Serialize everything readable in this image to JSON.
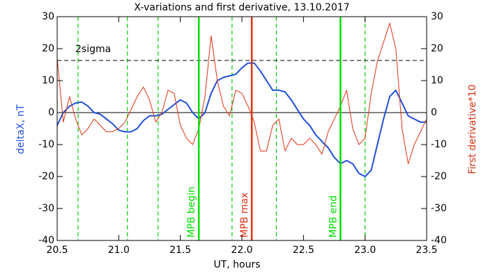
{
  "chart_data": {
    "type": "line",
    "title": "X-variations and first derivative, 13.10.2017",
    "x_label": "UT, hours",
    "y_label": "deltaX, nT",
    "y2_label": "First derivative*10",
    "x": [
      20.5,
      20.55,
      20.6,
      20.65,
      20.7,
      20.75,
      20.8,
      20.85,
      20.9,
      20.95,
      21.0,
      21.05,
      21.1,
      21.15,
      21.2,
      21.25,
      21.3,
      21.35,
      21.4,
      21.45,
      21.5,
      21.55,
      21.6,
      21.65,
      21.7,
      21.75,
      21.8,
      21.85,
      21.9,
      21.95,
      22.0,
      22.05,
      22.1,
      22.15,
      22.2,
      22.25,
      22.3,
      22.35,
      22.4,
      22.45,
      22.5,
      22.55,
      22.6,
      22.65,
      22.7,
      22.75,
      22.8,
      22.85,
      22.9,
      22.95,
      23.0,
      23.05,
      23.1,
      23.15,
      23.2,
      23.25,
      23.3,
      23.35,
      23.4,
      23.45,
      23.5
    ],
    "series": [
      {
        "name": "deltaX, nT",
        "color": "#1f4fd8",
        "axis": "y",
        "values": [
          -4,
          0,
          2,
          3,
          3.3,
          2,
          0,
          -0.5,
          -2,
          -3.5,
          -5.5,
          -6,
          -6,
          -5,
          -2.5,
          -1,
          -1,
          -0.5,
          1,
          2.5,
          4,
          3,
          0,
          -2,
          0,
          6,
          10,
          11,
          11.5,
          12,
          14,
          15.5,
          15.5,
          13,
          10,
          7,
          7,
          6.5,
          4,
          1,
          -2,
          -4,
          -7,
          -9,
          -11,
          -14,
          -16,
          -15,
          -16,
          -19,
          -20,
          -18,
          -10,
          -2,
          5,
          7,
          3,
          -1,
          -2,
          -3,
          -3
        ]
      },
      {
        "name": "First derivative*10",
        "color": "#e03010",
        "axis": "y2",
        "values": [
          17,
          -3,
          5,
          -2,
          -7,
          -5,
          -2,
          -4,
          -6,
          -6,
          -5,
          -3,
          1,
          5,
          8,
          4,
          -3,
          0,
          7,
          6,
          -4,
          -8,
          -10,
          -5,
          5,
          24,
          10,
          2,
          -1,
          7,
          6,
          2,
          -3,
          -12,
          -12,
          -4,
          -2,
          -12,
          -8,
          -10,
          -10,
          -8,
          -10,
          -13,
          -6,
          -2,
          2,
          7,
          -5,
          -10,
          -8,
          6,
          16,
          22,
          28,
          20,
          -5,
          -16,
          -10,
          -6,
          -2
        ]
      }
    ],
    "xlim": [
      20.5,
      23.5
    ],
    "xticks": [
      20.5,
      {
        "value": 21,
        "label": "21.0"
      },
      21.5,
      {
        "value": 22,
        "label": "22.0"
      },
      22.5,
      {
        "value": 23,
        "label": "23.0"
      },
      23.5
    ],
    "ylim": [
      -40,
      30
    ],
    "yticks": [
      -40,
      -30,
      -20,
      -10,
      0,
      10,
      20,
      30
    ],
    "y2lim": [
      -40,
      30
    ],
    "y2ticks": [
      -40,
      -30,
      -20,
      -10,
      0,
      10,
      20,
      30
    ],
    "reference_lines": [
      {
        "value": 0,
        "style": "solid"
      },
      {
        "value": 16.3,
        "style": "dashed",
        "label": "2sigma"
      }
    ],
    "markers": [
      {
        "x": 21.65,
        "label": "MPB begin",
        "color": "#00e000"
      },
      {
        "x": 22.08,
        "label": "MPB max",
        "color": "#e03010"
      },
      {
        "x": 22.8,
        "label": "MPB end",
        "color": "#00e000"
      }
    ],
    "dashed_markers": {
      "color": "#00d000",
      "x": [
        20.67,
        21.07,
        21.32,
        21.92,
        22.28,
        23.0
      ]
    }
  }
}
